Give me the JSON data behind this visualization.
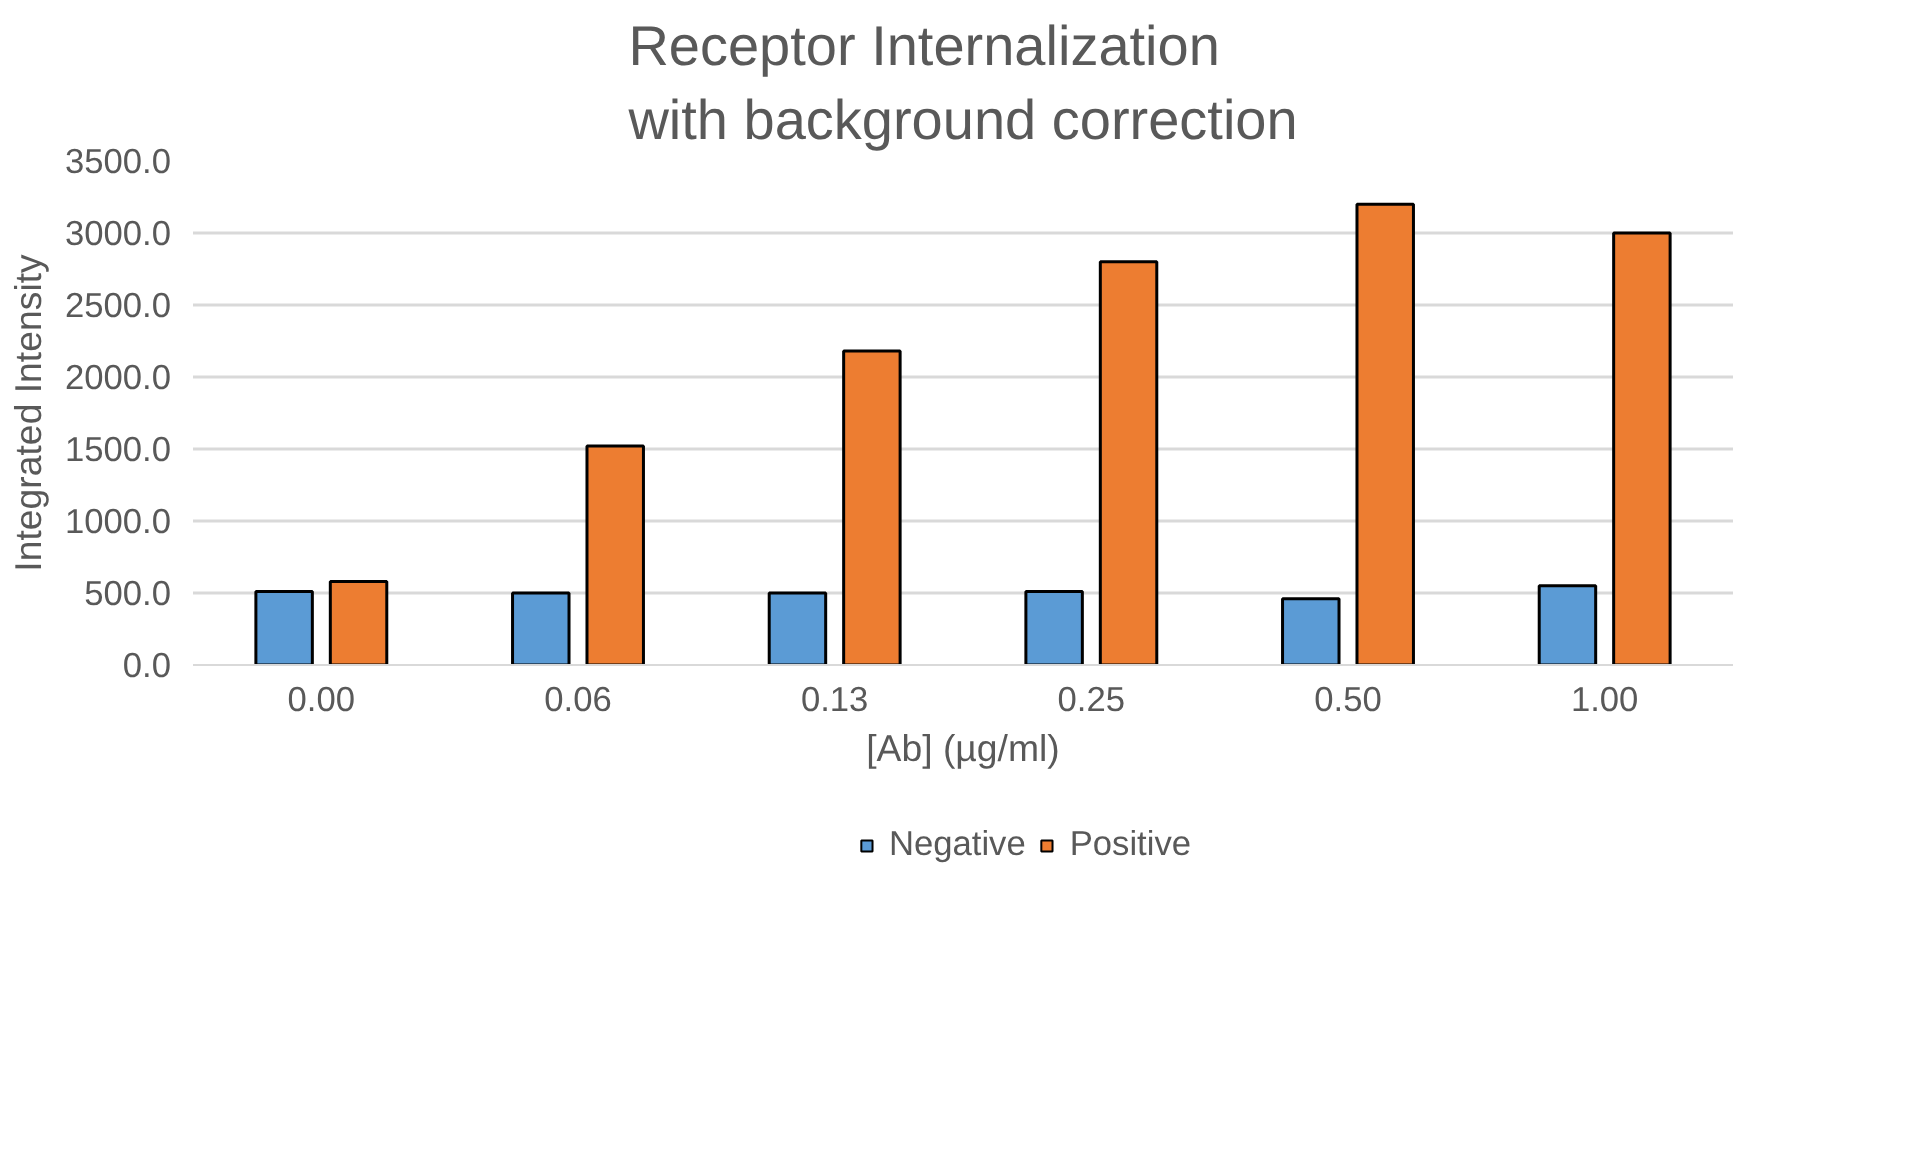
{
  "chart_data": {
    "type": "bar",
    "title": "Receptor Internalization\nwith background correction",
    "xlabel": "[Ab] (µg/ml)",
    "ylabel": "Integrated Intensity",
    "categories": [
      "0.00",
      "0.06",
      "0.13",
      "0.25",
      "0.50",
      "1.00"
    ],
    "series": [
      {
        "name": "Negative",
        "color": "#5b9bd5",
        "values": [
          510,
          500,
          500,
          510,
          460,
          550
        ]
      },
      {
        "name": "Positive",
        "color": "#ed7d31",
        "values": [
          580,
          1520,
          2180,
          2800,
          3200,
          3000
        ]
      }
    ],
    "ylim": [
      0,
      3500
    ],
    "yticks": [
      {
        "value": 0,
        "label": "0.0"
      },
      {
        "value": 500,
        "label": "500.0"
      },
      {
        "value": 1000,
        "label": "1000.0"
      },
      {
        "value": 1500,
        "label": "1500.0"
      },
      {
        "value": 2000,
        "label": "2000.0"
      },
      {
        "value": 2500,
        "label": "2500.0"
      },
      {
        "value": 3000,
        "label": "3000.0"
      },
      {
        "value": 3500,
        "label": "3500.0"
      }
    ],
    "grid": "y",
    "legend": "bottom"
  }
}
